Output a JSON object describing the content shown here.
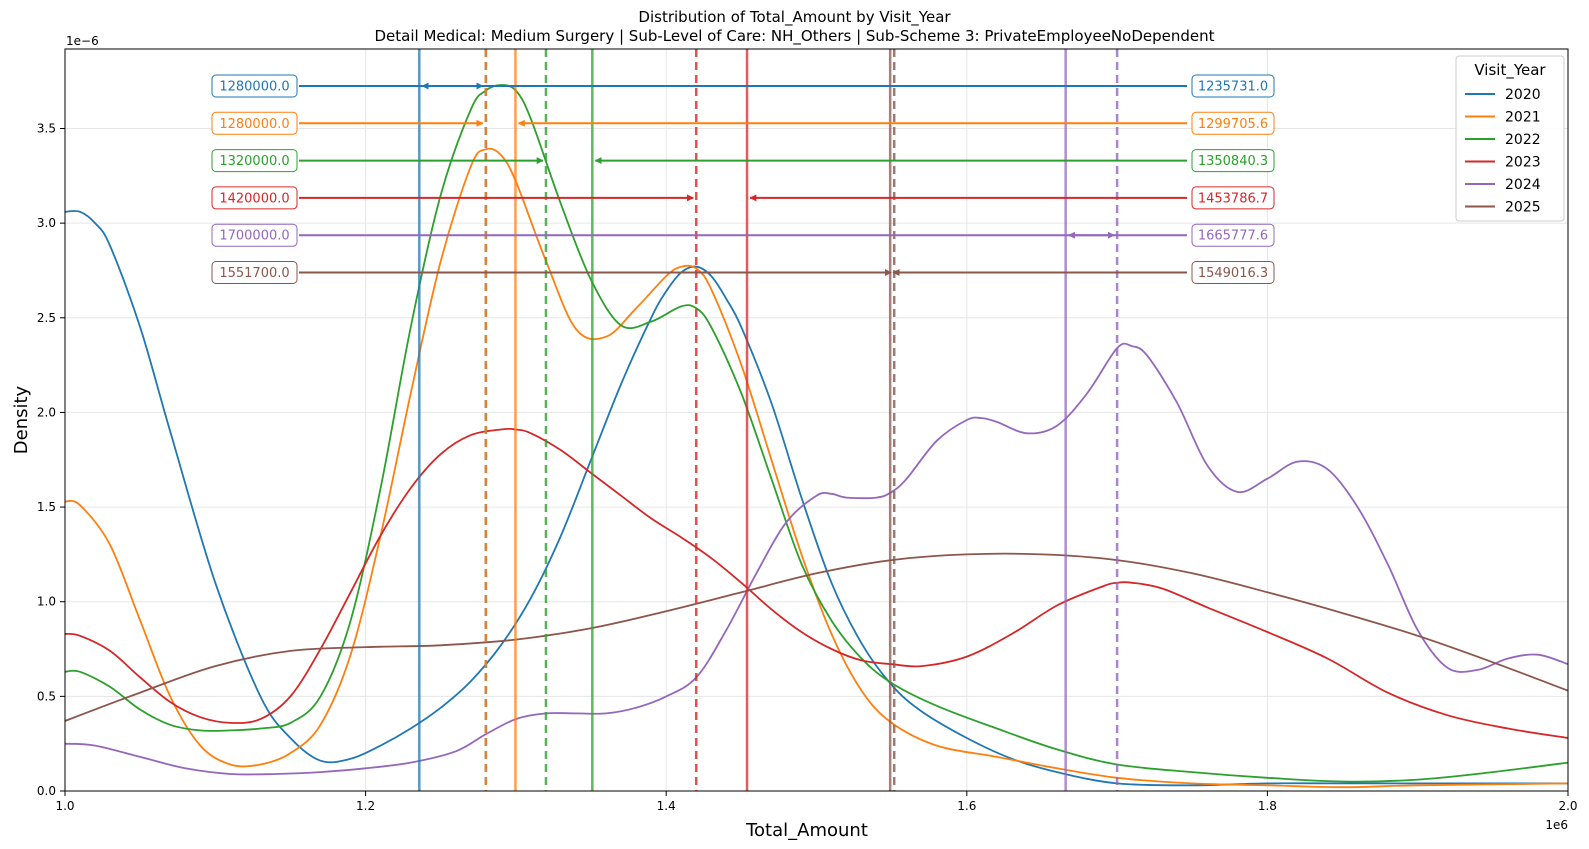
{
  "chart_data": {
    "type": "line",
    "title": "Distribution of Total_Amount by Visit_Year",
    "subtitle": "Detail Medical: Medium Surgery | Sub-Level of Care: NH_Others | Sub-Scheme 3: PrivateEmployeeNoDependent",
    "xlabel": "Total_Amount",
    "ylabel": "Density",
    "x_offset_label": "1e6",
    "y_offset_label": "1e−6",
    "xlim": [
      1000000,
      2000000
    ],
    "ylim": [
      0,
      3.92e-06
    ],
    "xticks": [
      1000000,
      1200000,
      1400000,
      1600000,
      1800000,
      2000000
    ],
    "xtick_labels": [
      "1.0",
      "1.2",
      "1.4",
      "1.6",
      "1.8",
      "2.0"
    ],
    "yticks": [
      0,
      5e-07,
      1e-06,
      1.5e-06,
      2e-06,
      2.5e-06,
      3e-06,
      3.5e-06
    ],
    "ytick_labels": [
      "0.0",
      "0.5",
      "1.0",
      "1.5",
      "2.0",
      "2.5",
      "3.0",
      "3.5"
    ],
    "grid": true,
    "legend": {
      "title": "Visit_Year",
      "placement": "top-right"
    },
    "series": [
      {
        "name": "2020",
        "color": "#1f77b4",
        "median": 1280000.0,
        "median_label": "1280000.0",
        "mean": 1235731.0,
        "mean_label": "1235731.0",
        "x": [
          1000000,
          1010000,
          1020000,
          1030000,
          1050000,
          1070000,
          1100000,
          1130000,
          1150000,
          1170000,
          1190000,
          1210000,
          1230000,
          1250000,
          1270000,
          1290000,
          1310000,
          1330000,
          1350000,
          1370000,
          1390000,
          1400000,
          1410000,
          1420000,
          1430000,
          1440000,
          1450000,
          1470000,
          1490000,
          1510000,
          1530000,
          1550000,
          1570000,
          1600000,
          1630000,
          1660000,
          1700000,
          1750000,
          1800000,
          1850000,
          1900000,
          1950000,
          2000000
        ],
        "y": [
          3.06e-06,
          3.06e-06,
          3e-06,
          2.88e-06,
          2.45e-06,
          1.9e-06,
          1.1e-06,
          5e-07,
          2.8e-07,
          1.6e-07,
          1.7e-07,
          2.4e-07,
          3.3e-07,
          4.4e-07,
          5.8e-07,
          7.7e-07,
          1.02e-06,
          1.35e-06,
          1.75e-06,
          2.15e-06,
          2.5e-06,
          2.64e-06,
          2.74e-06,
          2.77e-06,
          2.72e-06,
          2.6e-06,
          2.45e-06,
          2.05e-06,
          1.55e-06,
          1.1e-06,
          7.8e-07,
          5.6e-07,
          4.2e-07,
          2.8e-07,
          1.7e-07,
          1e-07,
          4e-08,
          3e-08,
          4e-08,
          4e-08,
          4e-08,
          4e-08,
          4e-08
        ]
      },
      {
        "name": "2021",
        "color": "#ff7f0e",
        "median": 1280000.0,
        "median_label": "1280000.0",
        "mean": 1299705.6,
        "mean_label": "1299705.6",
        "x": [
          1000000,
          1010000,
          1030000,
          1050000,
          1070000,
          1090000,
          1110000,
          1130000,
          1150000,
          1170000,
          1190000,
          1210000,
          1230000,
          1250000,
          1270000,
          1280000,
          1290000,
          1300000,
          1320000,
          1340000,
          1360000,
          1380000,
          1400000,
          1410000,
          1420000,
          1430000,
          1450000,
          1470000,
          1490000,
          1510000,
          1530000,
          1550000,
          1580000,
          1620000,
          1660000,
          1700000,
          1750000,
          1800000,
          1850000,
          1900000,
          2000000
        ],
        "y": [
          1.53e-06,
          1.51e-06,
          1.3e-06,
          9e-07,
          5e-07,
          2.4e-07,
          1.4e-07,
          1.4e-07,
          2e-07,
          3.5e-07,
          7.2e-07,
          1.35e-06,
          2.1e-06,
          2.8e-06,
          3.3e-06,
          3.39e-06,
          3.36e-06,
          3.22e-06,
          2.8e-06,
          2.44e-06,
          2.4e-06,
          2.55e-06,
          2.72e-06,
          2.77e-06,
          2.76e-06,
          2.65e-06,
          2.25e-06,
          1.75e-06,
          1.25e-06,
          8.3e-07,
          5.3e-07,
          3.6e-07,
          2.4e-07,
          1.8e-07,
          1.2e-07,
          7e-08,
          4e-08,
          3e-08,
          2e-08,
          3e-08,
          4e-08
        ]
      },
      {
        "name": "2022",
        "color": "#2ca02c",
        "median": 1320000.0,
        "median_label": "1320000.0",
        "mean": 1350840.3,
        "mean_label": "1350840.3",
        "x": [
          1000000,
          1010000,
          1030000,
          1050000,
          1070000,
          1090000,
          1110000,
          1130000,
          1150000,
          1170000,
          1190000,
          1210000,
          1230000,
          1250000,
          1270000,
          1280000,
          1290000,
          1300000,
          1310000,
          1330000,
          1350000,
          1370000,
          1390000,
          1410000,
          1420000,
          1430000,
          1450000,
          1470000,
          1490000,
          1510000,
          1530000,
          1550000,
          1580000,
          1620000,
          1660000,
          1700000,
          1750000,
          1800000,
          1850000,
          1900000,
          1950000,
          2000000
        ],
        "y": [
          6.3e-07,
          6.3e-07,
          5.5e-07,
          4.3e-07,
          3.5e-07,
          3.2e-07,
          3.2e-07,
          3.3e-07,
          3.6e-07,
          5e-07,
          9e-07,
          1.6e-06,
          2.45e-06,
          3.15e-06,
          3.6e-06,
          3.7e-06,
          3.73e-06,
          3.7e-06,
          3.55e-06,
          3.1e-06,
          2.7e-06,
          2.46e-06,
          2.48e-06,
          2.56e-06,
          2.55e-06,
          2.45e-06,
          2.1e-06,
          1.65e-06,
          1.2e-06,
          9e-07,
          7e-07,
          5.7e-07,
          4.5e-07,
          3.3e-07,
          2.2e-07,
          1.4e-07,
          1e-07,
          7e-08,
          5e-08,
          6e-08,
          1e-07,
          1.5e-07
        ]
      },
      {
        "name": "2023",
        "color": "#d62728",
        "median": 1420000.0,
        "median_label": "1420000.0",
        "mean": 1453786.7,
        "mean_label": "1453786.7",
        "x": [
          1000000,
          1010000,
          1030000,
          1050000,
          1070000,
          1090000,
          1110000,
          1130000,
          1150000,
          1170000,
          1190000,
          1210000,
          1230000,
          1250000,
          1270000,
          1290000,
          1300000,
          1310000,
          1330000,
          1350000,
          1370000,
          1390000,
          1410000,
          1430000,
          1450000,
          1470000,
          1490000,
          1510000,
          1530000,
          1550000,
          1570000,
          1600000,
          1630000,
          1660000,
          1690000,
          1700000,
          1710000,
          1730000,
          1760000,
          1800000,
          1840000,
          1880000,
          1920000,
          1960000,
          2000000
        ],
        "y": [
          8.3e-07,
          8.2e-07,
          7.4e-07,
          6e-07,
          4.7e-07,
          3.9e-07,
          3.6e-07,
          3.8e-07,
          5e-07,
          7.5e-07,
          1.05e-06,
          1.35e-06,
          1.6e-06,
          1.78e-06,
          1.88e-06,
          1.91e-06,
          1.91e-06,
          1.89e-06,
          1.8e-06,
          1.68e-06,
          1.56e-06,
          1.44e-06,
          1.34e-06,
          1.23e-06,
          1.1e-06,
          9.6e-07,
          8.4e-07,
          7.5e-07,
          6.9e-07,
          6.7e-07,
          6.6e-07,
          7.1e-07,
          8.3e-07,
          9.8e-07,
          1.08e-06,
          1.1e-06,
          1.1e-06,
          1.07e-06,
          9.7e-07,
          8.4e-07,
          7e-07,
          5.2e-07,
          4e-07,
          3.3e-07,
          2.8e-07
        ]
      },
      {
        "name": "2024",
        "color": "#9467bd",
        "median": 1700000.0,
        "median_label": "1700000.0",
        "mean": 1665777.6,
        "mean_label": "1665777.6",
        "x": [
          1000000,
          1020000,
          1050000,
          1080000,
          1110000,
          1140000,
          1170000,
          1200000,
          1230000,
          1260000,
          1280000,
          1300000,
          1320000,
          1340000,
          1360000,
          1380000,
          1400000,
          1420000,
          1440000,
          1460000,
          1480000,
          1500000,
          1510000,
          1520000,
          1540000,
          1550000,
          1560000,
          1580000,
          1600000,
          1610000,
          1620000,
          1640000,
          1660000,
          1680000,
          1700000,
          1710000,
          1720000,
          1740000,
          1760000,
          1780000,
          1800000,
          1820000,
          1840000,
          1860000,
          1880000,
          1900000,
          1920000,
          1940000,
          1960000,
          1980000,
          2000000
        ],
        "y": [
          2.5e-07,
          2.4e-07,
          1.8e-07,
          1.2e-07,
          9e-08,
          9e-08,
          1e-07,
          1.2e-07,
          1.5e-07,
          2.1e-07,
          3e-07,
          3.8e-07,
          4.1e-07,
          4.1e-07,
          4.1e-07,
          4.4e-07,
          5e-07,
          6e-07,
          8.5e-07,
          1.15e-06,
          1.42e-06,
          1.56e-06,
          1.57e-06,
          1.55e-06,
          1.55e-06,
          1.58e-06,
          1.65e-06,
          1.85e-06,
          1.96e-06,
          1.97e-06,
          1.95e-06,
          1.89e-06,
          1.93e-06,
          2.1e-06,
          2.34e-06,
          2.35e-06,
          2.3e-06,
          2.05e-06,
          1.72e-06,
          1.58e-06,
          1.65e-06,
          1.74e-06,
          1.7e-06,
          1.5e-06,
          1.2e-06,
          8.5e-07,
          6.5e-07,
          6.4e-07,
          7e-07,
          7.2e-07,
          6.7e-07
        ]
      },
      {
        "name": "2025",
        "color": "#8c564b",
        "median": 1551700.0,
        "median_label": "1551700.0",
        "mean": 1549016.3,
        "mean_label": "1549016.3",
        "x": [
          1000000,
          1050000,
          1100000,
          1150000,
          1200000,
          1250000,
          1300000,
          1350000,
          1400000,
          1450000,
          1500000,
          1550000,
          1600000,
          1650000,
          1700000,
          1750000,
          1800000,
          1850000,
          1900000,
          1950000,
          2000000
        ],
        "y": [
          3.7e-07,
          5.2e-07,
          6.6e-07,
          7.4e-07,
          7.6e-07,
          7.7e-07,
          8e-07,
          8.6e-07,
          9.5e-07,
          1.05e-06,
          1.15e-06,
          1.22e-06,
          1.25e-06,
          1.25e-06,
          1.22e-06,
          1.15e-06,
          1.05e-06,
          9.4e-07,
          8.2e-07,
          6.8e-07,
          5.3e-07
        ]
      }
    ]
  }
}
